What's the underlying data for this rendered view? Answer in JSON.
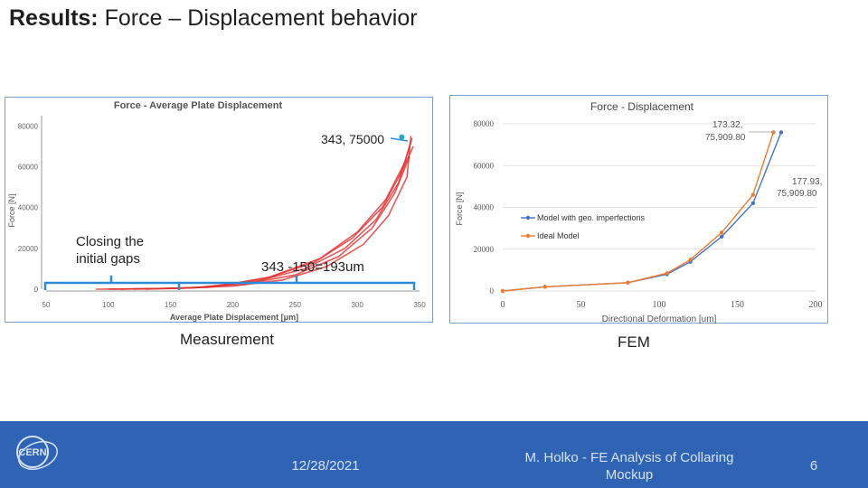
{
  "slide": {
    "title_bold": "Results:",
    "title_rest": " Force – Displacement behavior"
  },
  "annotations": {
    "peak_label": "343, 75000",
    "closing_gaps": [
      "Closing the",
      "initial gaps"
    ],
    "difference": "343 -150=193um",
    "measurement_caption": "Measurement",
    "fem_caption": "FEM"
  },
  "footer": {
    "date": "12/28/2021",
    "author_line1": "M. Holko - FE Analysis of Collaring",
    "author_line2": "Mockup",
    "page_number": "6",
    "logo_text": "CERN"
  },
  "colors": {
    "footer_bg": "#2f63b3",
    "measurement_red": "#e03030",
    "fem_blue": "#4472c4",
    "fem_orange": "#ed7d31",
    "bracket_blue": "#2e8bd8"
  },
  "chart_data": [
    {
      "type": "line",
      "title": "Force - Average Plate Displacement",
      "xlabel": "Average Plate Displacement [μm]",
      "ylabel": "Force [N]",
      "xlim": [
        50,
        350
      ],
      "ylim": [
        0,
        85000
      ],
      "xticks": [
        50,
        100,
        150,
        200,
        250,
        300,
        350
      ],
      "yticks": [
        0,
        20000,
        40000,
        60000,
        80000
      ],
      "series": [
        {
          "values": [
            [
              90,
              0
            ],
            [
              150,
              300
            ],
            [
              200,
              1500
            ],
            [
              240,
              4500
            ],
            [
              275,
              11000
            ],
            [
              305,
              22000
            ],
            [
              325,
              36000
            ],
            [
              340,
              55000
            ],
            [
              343,
              75000
            ]
          ]
        },
        {
          "values": [
            [
              100,
              0
            ],
            [
              160,
              500
            ],
            [
              210,
              2500
            ],
            [
              250,
              7000
            ],
            [
              285,
              16000
            ],
            [
              312,
              30000
            ],
            [
              330,
              47000
            ],
            [
              342,
              65000
            ]
          ]
        },
        {
          "values": [
            [
              110,
              0
            ],
            [
              170,
              700
            ],
            [
              220,
              4000
            ],
            [
              258,
              10000
            ],
            [
              290,
              20000
            ],
            [
              315,
              34000
            ],
            [
              333,
              52000
            ],
            [
              343,
              72000
            ]
          ]
        },
        {
          "values": [
            [
              120,
              0
            ],
            [
              180,
              900
            ],
            [
              225,
              5000
            ],
            [
              265,
              13000
            ],
            [
              296,
              25000
            ],
            [
              320,
              40000
            ],
            [
              336,
              58000
            ],
            [
              345,
              70000
            ]
          ]
        },
        {
          "values": [
            [
              130,
              0
            ],
            [
              185,
              1200
            ],
            [
              230,
              6000
            ],
            [
              270,
              15000
            ],
            [
              300,
              28000
            ],
            [
              323,
              44000
            ],
            [
              338,
              62000
            ],
            [
              344,
              74000
            ]
          ]
        }
      ],
      "peak_point": [
        343,
        75000
      ]
    },
    {
      "type": "line",
      "title": "Force - Displacement",
      "xlabel": "Directional Deformation [um]",
      "ylabel": "Force [N]",
      "xlim": [
        0,
        200
      ],
      "ylim": [
        0,
        80000
      ],
      "xticks": [
        0,
        50,
        100,
        150,
        200
      ],
      "yticks": [
        0,
        20000,
        40000,
        60000,
        80000
      ],
      "legend": "center-left",
      "series": [
        {
          "name": "Model with geo. imperfections",
          "values": [
            [
              0,
              0
            ],
            [
              27,
              2000
            ],
            [
              80,
              4000
            ],
            [
              105,
              8000
            ],
            [
              120,
              14000
            ],
            [
              140,
              26000
            ],
            [
              160,
              42000
            ],
            [
              178,
              75900
            ]
          ]
        },
        {
          "name": "Ideal Model",
          "values": [
            [
              0,
              0
            ],
            [
              27,
              2000
            ],
            [
              80,
              4000
            ],
            [
              105,
              8500
            ],
            [
              120,
              15000
            ],
            [
              140,
              28000
            ],
            [
              160,
              46000
            ],
            [
              173,
              75900
            ]
          ]
        }
      ],
      "point_labels": [
        {
          "text": "173.32,",
          "text2": "75,909.80"
        },
        {
          "text": "177.93,",
          "text2": "75,909.80"
        }
      ]
    }
  ]
}
